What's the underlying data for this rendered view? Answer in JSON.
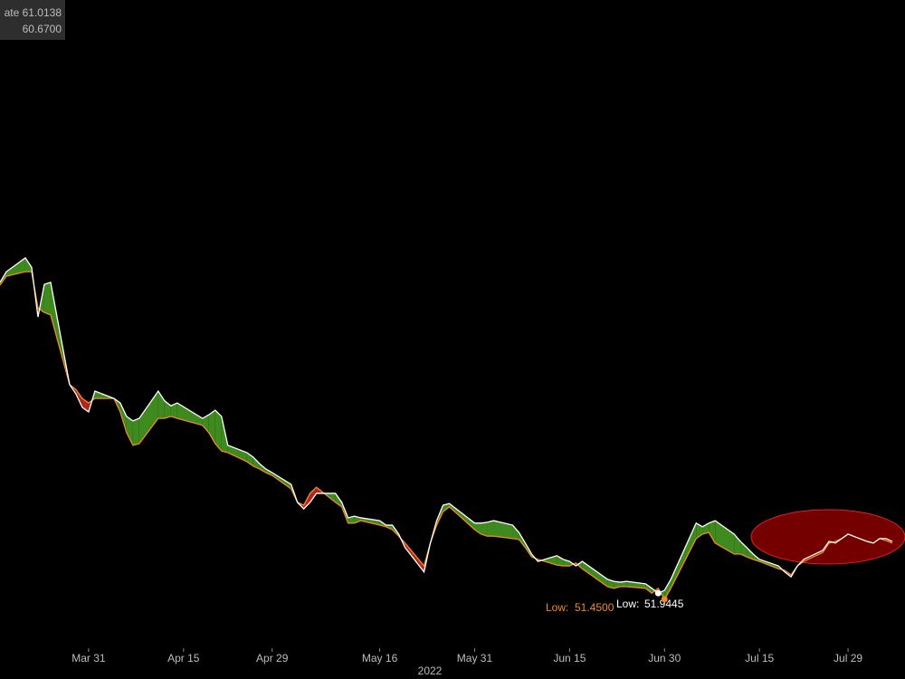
{
  "chart_data": {
    "type": "line",
    "legend": [
      "ate 61.0138",
      "60.6700"
    ],
    "annotations": {
      "orange_low": {
        "label": "Low:",
        "value": "51.4500"
      },
      "white_low": {
        "label": "Low:",
        "value": "51.9445"
      }
    },
    "x_axis_label": "2022",
    "x": [
      "2022-03-17",
      "2022-03-18",
      "2022-03-21",
      "2022-03-22",
      "2022-03-23",
      "2022-03-24",
      "2022-03-25",
      "2022-03-28",
      "2022-03-29",
      "2022-03-30",
      "2022-03-31",
      "2022-04-01",
      "2022-04-04",
      "2022-04-05",
      "2022-04-06",
      "2022-04-07",
      "2022-04-08",
      "2022-04-11",
      "2022-04-12",
      "2022-04-13",
      "2022-04-14",
      "2022-04-18",
      "2022-04-19",
      "2022-04-20",
      "2022-04-21",
      "2022-04-22",
      "2022-04-25",
      "2022-04-26",
      "2022-04-27",
      "2022-04-28",
      "2022-04-29",
      "2022-05-02",
      "2022-05-03",
      "2022-05-04",
      "2022-05-05",
      "2022-05-06",
      "2022-05-09",
      "2022-05-10",
      "2022-05-11",
      "2022-05-12",
      "2022-05-13",
      "2022-05-16",
      "2022-05-17",
      "2022-05-18",
      "2022-05-19",
      "2022-05-20",
      "2022-05-23",
      "2022-05-24",
      "2022-05-25",
      "2022-05-26",
      "2022-05-27",
      "2022-05-31",
      "2022-06-01",
      "2022-06-02",
      "2022-06-03",
      "2022-06-06",
      "2022-06-07",
      "2022-06-08",
      "2022-06-09",
      "2022-06-10",
      "2022-06-13",
      "2022-06-14",
      "2022-06-15",
      "2022-06-16",
      "2022-06-17",
      "2022-06-21",
      "2022-06-22",
      "2022-06-23",
      "2022-06-24",
      "2022-06-27",
      "2022-06-28",
      "2022-06-29",
      "2022-06-30",
      "2022-07-01",
      "2022-07-05",
      "2022-07-06",
      "2022-07-07",
      "2022-07-08",
      "2022-07-11",
      "2022-07-12",
      "2022-07-13",
      "2022-07-14",
      "2022-07-15",
      "2022-07-18",
      "2022-07-19",
      "2022-07-20",
      "2022-07-21",
      "2022-07-22",
      "2022-07-25",
      "2022-07-26",
      "2022-07-27",
      "2022-07-28",
      "2022-07-29",
      "2022-08-01",
      "2022-08-02",
      "2022-08-03",
      "2022-08-04",
      "2022-08-05"
    ],
    "series": [
      {
        "color": "#ffffff",
        "values": [
          59.57,
          59.83,
          60.17,
          59.94,
          58.72,
          59.52,
          59.57,
          57.06,
          56.83,
          56.5,
          56.39,
          56.9,
          56.72,
          56.61,
          56.28,
          56.17,
          56.23,
          56.9,
          56.66,
          56.54,
          56.61,
          56.23,
          56.32,
          56.43,
          56.28,
          55.57,
          55.39,
          55.28,
          55.12,
          54.99,
          54.9,
          54.61,
          54.17,
          54.01,
          54.17,
          54.39,
          54.39,
          54.17,
          53.79,
          53.83,
          53.79,
          53.72,
          53.61,
          53.61,
          53.39,
          53.06,
          52.46,
          53.17,
          53.72,
          54.1,
          54.14,
          53.66,
          53.66,
          53.68,
          53.72,
          53.61,
          53.43,
          53.17,
          52.9,
          52.72,
          52.86,
          52.77,
          52.72,
          52.61,
          52.72,
          52.28,
          52.23,
          52.21,
          52.23,
          52.17,
          52.06,
          51.94,
          52.01,
          52.28,
          53.66,
          53.57,
          53.66,
          53.72,
          53.39,
          53.21,
          53.06,
          52.9,
          52.77,
          52.61,
          52.46,
          52.34,
          52.61,
          52.77,
          52.99,
          53.21,
          53.17,
          53.28,
          53.39,
          53.21,
          53.17,
          53.28,
          53.28,
          53.21
        ]
      },
      {
        "color": "#f08a24",
        "values": [
          59.5,
          59.72,
          59.83,
          59.83,
          58.94,
          58.83,
          58.77,
          57.06,
          56.94,
          56.72,
          56.61,
          56.72,
          56.72,
          56.39,
          55.88,
          55.57,
          55.61,
          56.23,
          56.23,
          56.28,
          56.23,
          56.06,
          55.88,
          55.61,
          55.43,
          55.39,
          55.17,
          55.06,
          54.99,
          54.9,
          54.83,
          54.5,
          54.17,
          54.1,
          54.39,
          54.54,
          54.17,
          54.06,
          53.66,
          53.66,
          53.72,
          53.61,
          53.57,
          53.5,
          53.34,
          53.17,
          52.61,
          53.17,
          53.61,
          53.94,
          54.06,
          53.5,
          53.39,
          53.34,
          53.34,
          53.28,
          53.26,
          53.06,
          52.83,
          52.77,
          52.63,
          52.61,
          52.61,
          52.68,
          52.54,
          52.1,
          52.06,
          52.1,
          52.1,
          52.06,
          51.94,
          52.06,
          51.79,
          52.06,
          53.28,
          53.39,
          53.43,
          53.17,
          52.9,
          52.9,
          52.83,
          52.77,
          52.72,
          52.54,
          52.5,
          52.39,
          52.61,
          52.72,
          52.94,
          53.17,
          53.21,
          53.28,
          53.39,
          53.21,
          53.17,
          53.28,
          53.23,
          53.17
        ]
      }
    ],
    "fill_colors": {
      "above": "#3f8a1f",
      "below": "#b3261e"
    },
    "xlim": [
      "2022-03-17",
      "2022-08-07"
    ],
    "xticks": [
      {
        "value": "2022-03-31",
        "label": "Mar 31"
      },
      {
        "value": "2022-04-15",
        "label": "Apr 15"
      },
      {
        "value": "2022-04-29",
        "label": "Apr 29"
      },
      {
        "value": "2022-05-16",
        "label": "May 16"
      },
      {
        "value": "2022-05-31",
        "label": "May 31"
      },
      {
        "value": "2022-06-15",
        "label": "Jun 15"
      },
      {
        "value": "2022-06-30",
        "label": "Jun 30"
      },
      {
        "value": "2022-07-15",
        "label": "Jul 15"
      },
      {
        "value": "2022-07-29",
        "label": "Jul 29"
      }
    ],
    "ylim": [
      50.5,
      66.5
    ],
    "grid": false
  }
}
